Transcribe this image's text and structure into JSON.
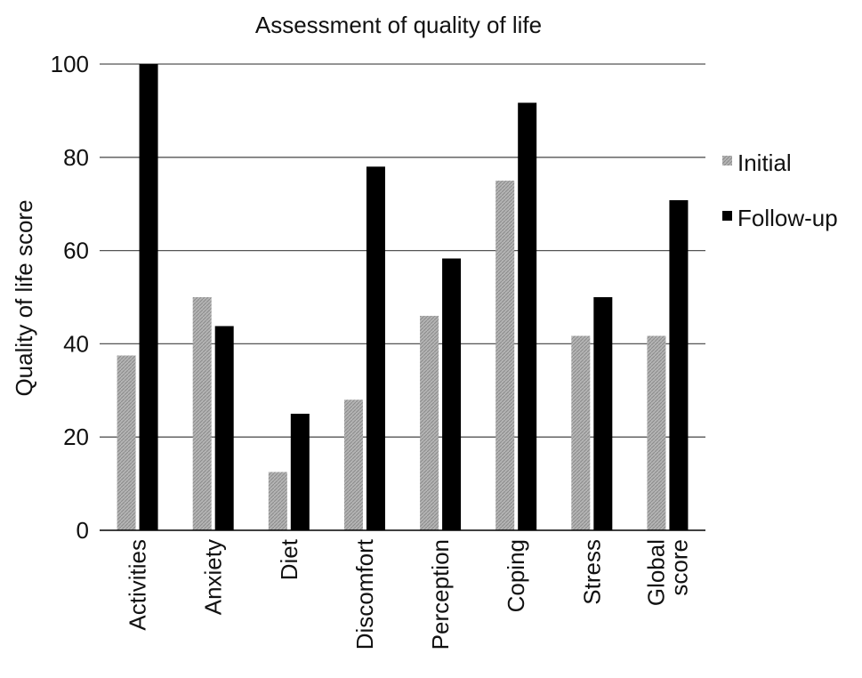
{
  "chart_data": {
    "type": "bar",
    "title": "Assessment of quality of life",
    "xlabel": "",
    "ylabel": "Quality of life score",
    "ylim": [
      0,
      100
    ],
    "yticks": [
      0,
      20,
      40,
      60,
      80,
      100
    ],
    "grid": true,
    "legend_position": "right",
    "categories": [
      [
        "Activities"
      ],
      [
        "Anxiety"
      ],
      [
        "Diet"
      ],
      [
        "Discomfort"
      ],
      [
        "Perception"
      ],
      [
        "Coping"
      ],
      [
        "Stress"
      ],
      [
        "Global",
        "score"
      ]
    ],
    "series": [
      {
        "name": "Initial",
        "color": "#a9a9a9",
        "pattern": "hatched",
        "values": [
          37.5,
          50,
          12.5,
          28,
          46,
          75,
          41.7,
          41.7
        ]
      },
      {
        "name": "Follow-up",
        "color": "#000000",
        "pattern": "solid",
        "values": [
          100,
          43.8,
          25,
          78,
          58.3,
          91.7,
          50,
          70.8
        ]
      }
    ]
  }
}
